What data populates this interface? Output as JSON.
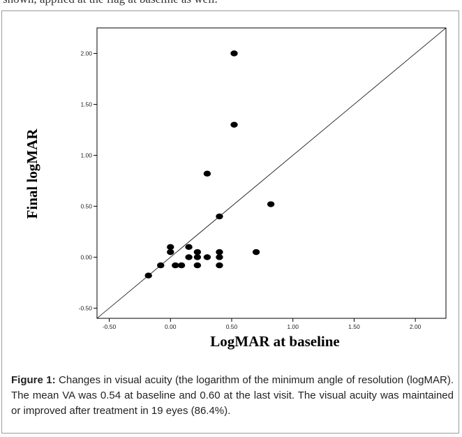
{
  "top_text": "shown, applied at the flag at baseline as well.",
  "caption": {
    "label": "Figure 1:",
    "text": " Changes in visual acuity (the logarithm of the minimum angle of resolution (logMAR). The mean VA was 0.54 at baseline and 0.60 at the last visit. The visual acuity was maintained or improved after treatment in 19 eyes (86.4%)."
  },
  "chart_data": {
    "type": "scatter",
    "xlabel": "LogMAR at baseline",
    "ylabel": "Final logMAR",
    "xlim": [
      -0.6,
      2.25
    ],
    "ylim": [
      -0.6,
      2.25
    ],
    "x_ticks": [
      "-0.50",
      "0.00",
      "0.50",
      "1.00",
      "1.50",
      "2.00"
    ],
    "y_ticks": [
      "-0.50",
      "0.00",
      "0.50",
      "1.00",
      "1.50",
      "2.00"
    ],
    "reference_line": "y = x",
    "grid": false,
    "points": [
      {
        "x": 0.52,
        "y": 2.0
      },
      {
        "x": 0.52,
        "y": 1.3
      },
      {
        "x": 0.3,
        "y": 0.82
      },
      {
        "x": 0.82,
        "y": 0.52
      },
      {
        "x": 0.4,
        "y": 0.4
      },
      {
        "x": 0.0,
        "y": 0.1
      },
      {
        "x": 0.0,
        "y": 0.05
      },
      {
        "x": 0.15,
        "y": 0.1
      },
      {
        "x": 0.22,
        "y": 0.05
      },
      {
        "x": 0.4,
        "y": 0.05
      },
      {
        "x": 0.7,
        "y": 0.05
      },
      {
        "x": 0.15,
        "y": 0.0
      },
      {
        "x": 0.22,
        "y": 0.0
      },
      {
        "x": 0.3,
        "y": 0.0
      },
      {
        "x": 0.4,
        "y": 0.0
      },
      {
        "x": -0.08,
        "y": -0.08
      },
      {
        "x": 0.04,
        "y": -0.08
      },
      {
        "x": 0.09,
        "y": -0.08
      },
      {
        "x": 0.22,
        "y": -0.08
      },
      {
        "x": 0.4,
        "y": -0.08
      },
      {
        "x": -0.18,
        "y": -0.18
      }
    ],
    "marker_color": "#000000"
  }
}
